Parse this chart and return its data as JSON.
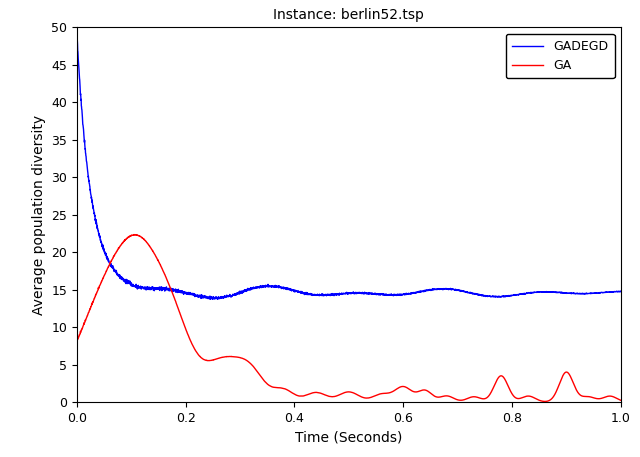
{
  "title": "Instance: berlin52.tsp",
  "xlabel": "Time (Seconds)",
  "ylabel": "Average population diversity",
  "xlim": [
    0,
    1
  ],
  "ylim": [
    0,
    50
  ],
  "yticks": [
    0,
    5,
    10,
    15,
    20,
    25,
    30,
    35,
    40,
    45,
    50
  ],
  "xticks": [
    0,
    0.2,
    0.4,
    0.6,
    0.8,
    1.0
  ],
  "gadegd_color": "#0000ff",
  "ga_color": "#ff0000",
  "background_color": "#ffffff",
  "legend_labels": [
    "GADEGD",
    "GA"
  ],
  "title_fontsize": 10,
  "label_fontsize": 10
}
